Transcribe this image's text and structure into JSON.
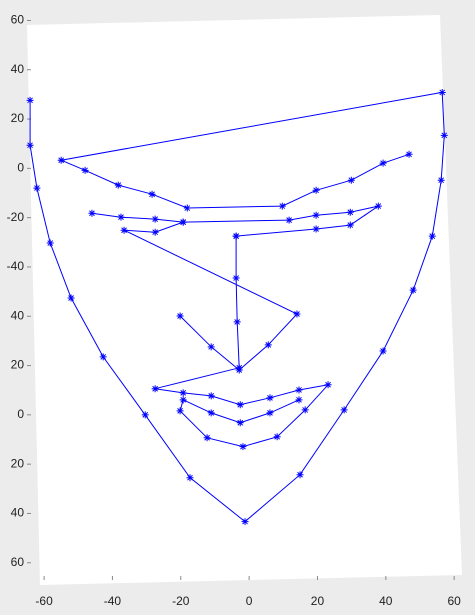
{
  "chart_data": {
    "type": "line",
    "color": "#0000ff",
    "x": [
      -64.1,
      -64.1,
      -62.1,
      -58.2,
      -52.1,
      -42.7,
      -30.4,
      -17.3,
      -1.2,
      14.9,
      27.8,
      39.2,
      48.0,
      53.6,
      56.2,
      57.1,
      56.5,
      -55.0,
      -48.0,
      -38.3,
      -28.4,
      -18.1,
      9.7,
      19.6,
      29.9,
      39.2,
      46.8,
      null,
      -46.0,
      -37.5,
      -27.5,
      -19.3,
      11.7,
      19.6,
      29.6,
      37.8,
      29.6,
      19.6,
      -3.8,
      null,
      -19.3,
      -27.5,
      -36.6,
      14.0,
      5.6,
      -2.9,
      -11.1,
      -20.2,
      null,
      -3.8,
      -3.8,
      -3.5,
      -2.9,
      -27.5,
      -19.3,
      -11.1,
      -2.6,
      6.1,
      14.6,
      23.1,
      16.4,
      8.2,
      -1.8,
      -12.3,
      -20.2,
      -19.3,
      -11.1,
      -2.6,
      6.1,
      14.6
    ],
    "values": [
      27.6,
      9.4,
      -8.0,
      -30.3,
      -52.6,
      -76.5,
      -100.0,
      -125.5,
      -143.3,
      -124.3,
      -98.0,
      -74.1,
      -49.4,
      -27.5,
      -4.8,
      13.4,
      30.8,
      3.3,
      -0.8,
      -6.8,
      -10.5,
      -16.1,
      -15.3,
      -8.9,
      -4.8,
      2.1,
      5.7,
      null,
      -18.2,
      -19.8,
      -20.6,
      -21.8,
      -21.0,
      -19.0,
      -17.8,
      -15.3,
      -23.0,
      -24.6,
      -27.5,
      null,
      -21.8,
      -25.9,
      -25.1,
      -59.1,
      -71.6,
      -81.8,
      -72.4,
      -59.9,
      null,
      -27.5,
      -44.5,
      -62.3,
      -80.9,
      -89.4,
      -91.1,
      -92.3,
      -95.9,
      -93.1,
      -89.9,
      -87.8,
      -98.0,
      -108.9,
      -112.9,
      -109.3,
      -98.4,
      -93.9,
      -99.2,
      -103.2,
      -99.2,
      -93.9
    ],
    "xlim": [
      -65,
      62
    ],
    "ylim": [
      -167,
      61
    ],
    "xticks": [
      -60,
      -40,
      -20,
      0,
      20,
      40,
      60
    ],
    "yticks": [
      60,
      40,
      20,
      0,
      -20,
      -40,
      {
        "value": -60,
        "label": "40"
      },
      {
        "value": -80,
        "label": "20"
      },
      {
        "value": -100,
        "label": "0"
      },
      {
        "value": -120,
        "label": "20"
      },
      {
        "value": -140,
        "label": "40"
      },
      {
        "value": -160,
        "label": "60"
      }
    ]
  }
}
